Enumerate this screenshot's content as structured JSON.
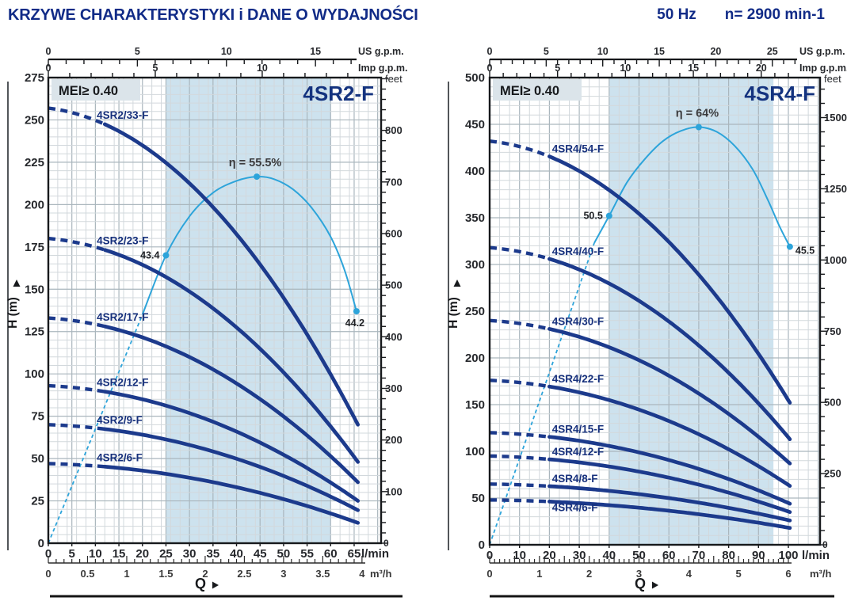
{
  "header": {
    "title": "KRZYWE CHARAKTERYSTYKI i DANE O WYDAJNOŚCI",
    "frequency": "50 Hz",
    "speed": "n= 2900 min-1"
  },
  "colors": {
    "header_blue": "#112b87",
    "curve_navy": "#1c3a8c",
    "efficiency_blue": "#2da4da",
    "duty_band_blue": "#cde2ee",
    "mei_box_gray": "#dbe4ea"
  },
  "chart_data": [
    {
      "type": "line",
      "model": "4SR2-F",
      "mei_label": "MEI≥ 0.40",
      "xlabel": "Q",
      "ylabel": "H (m)",
      "x_axis_units": {
        "primary": "l/min",
        "secondary": "m³/h",
        "top_outer": "US g.p.m.",
        "top_inner": "Imp g.p.m."
      },
      "y_axis_right_unit": "feet",
      "xlim_lmin": [
        0,
        70
      ],
      "ylim_m": [
        0,
        275
      ],
      "x_ticks_lmin": [
        0,
        5,
        10,
        15,
        20,
        25,
        30,
        35,
        40,
        45,
        50,
        55,
        60,
        65
      ],
      "x_ticks_m3h": [
        0,
        0.5,
        1,
        1.5,
        2,
        2.5,
        3,
        3.5,
        4
      ],
      "x_ticks_us_gpm": [
        0,
        5,
        10,
        15
      ],
      "x_ticks_imp_gpm": [
        0,
        5,
        10
      ],
      "y_ticks_m": [
        0,
        25,
        50,
        75,
        100,
        125,
        150,
        175,
        200,
        225,
        250,
        275
      ],
      "y_ticks_feet": [
        100,
        200,
        300,
        400,
        500,
        600,
        700,
        800
      ],
      "preferred_range_lmin": [
        25,
        60
      ],
      "curve_q_end_lmin": 65.8,
      "curve_dashed_until_lmin": 12,
      "curves": [
        {
          "label": "4SR2/33-F",
          "h0_m": 257,
          "h_end_m": 70
        },
        {
          "label": "4SR2/23-F",
          "h0_m": 180,
          "h_end_m": 48
        },
        {
          "label": "4SR2/17-F",
          "h0_m": 133,
          "h_end_m": 36
        },
        {
          "label": "4SR2/12-F",
          "h0_m": 93,
          "h_end_m": 25
        },
        {
          "label": "4SR2/9-F",
          "h0_m": 70,
          "h_end_m": 19.5
        },
        {
          "label": "4SR2/6-F",
          "h0_m": 47,
          "h_end_m": 12
        }
      ],
      "efficiency_curve": {
        "dashed_points_q_h": [
          [
            0,
            0
          ],
          [
            20,
            135
          ]
        ],
        "solid_points_q_h": [
          [
            20,
            135
          ],
          [
            25,
            170
          ],
          [
            30,
            193
          ],
          [
            35,
            207
          ],
          [
            40,
            214
          ],
          [
            44.3,
            216.5
          ],
          [
            48,
            215
          ],
          [
            52,
            209
          ],
          [
            56,
            198
          ],
          [
            60,
            181
          ],
          [
            63,
            161
          ],
          [
            65.5,
            137
          ]
        ],
        "markers": [
          {
            "q_lmin": 25,
            "h_m": 170,
            "label": "43.4",
            "pos": "left"
          },
          {
            "q_lmin": 44.3,
            "h_m": 216.5,
            "label": "η = 55.5%",
            "pos": "top"
          },
          {
            "q_lmin": 65.5,
            "h_m": 137,
            "label": "44.2",
            "pos": "bottom"
          }
        ]
      }
    },
    {
      "type": "line",
      "model": "4SR4-F",
      "mei_label": "MEI≥ 0.40",
      "xlabel": "Q",
      "ylabel": "H (m)",
      "x_axis_units": {
        "primary": "l/min",
        "secondary": "m³/h",
        "top_outer": "US g.p.m.",
        "top_inner": "Imp g.p.m."
      },
      "y_axis_right_unit": "feet",
      "xlim_lmin": [
        0,
        110
      ],
      "ylim_m": [
        0,
        500
      ],
      "x_ticks_lmin": [
        0,
        10,
        20,
        30,
        40,
        50,
        60,
        70,
        80,
        90,
        100
      ],
      "x_ticks_m3h": [
        0,
        1,
        2,
        3,
        4,
        5,
        6
      ],
      "x_ticks_us_gpm": [
        0,
        5,
        10,
        15,
        20,
        25
      ],
      "x_ticks_imp_gpm": [
        0,
        5,
        10,
        15,
        20
      ],
      "y_ticks_m": [
        0,
        50,
        100,
        150,
        200,
        250,
        300,
        350,
        400,
        450,
        500
      ],
      "y_ticks_feet": [
        250,
        500,
        750,
        1000,
        1250,
        1500
      ],
      "preferred_range_lmin": [
        40,
        95
      ],
      "curve_q_end_lmin": 100.5,
      "curve_dashed_until_lmin": 20,
      "curves": [
        {
          "label": "4SR4/54-F",
          "h0_m": 432,
          "h_end_m": 152
        },
        {
          "label": "4SR4/40-F",
          "h0_m": 318,
          "h_end_m": 113
        },
        {
          "label": "4SR4/30-F",
          "h0_m": 240,
          "h_end_m": 87
        },
        {
          "label": "4SR4/22-F",
          "h0_m": 176,
          "h_end_m": 63
        },
        {
          "label": "4SR4/15-F",
          "h0_m": 120,
          "h_end_m": 44
        },
        {
          "label": "4SR4/12-F",
          "h0_m": 95,
          "h_end_m": 35
        },
        {
          "label": "4SR4/8-F",
          "h0_m": 65,
          "h_end_m": 26
        },
        {
          "label": "4SR4/6-F",
          "h0_m": 48,
          "h_end_m": 18,
          "label_dy": 17
        }
      ],
      "efficiency_curve": {
        "dashed_points_q_h": [
          [
            0,
            0
          ],
          [
            35,
            323
          ]
        ],
        "solid_points_q_h": [
          [
            35,
            323
          ],
          [
            40,
            352
          ],
          [
            46,
            388
          ],
          [
            52,
            413
          ],
          [
            58,
            432
          ],
          [
            64,
            443
          ],
          [
            70,
            447
          ],
          [
            76,
            442
          ],
          [
            82,
            427
          ],
          [
            88,
            402
          ],
          [
            93,
            370
          ],
          [
            97,
            341
          ],
          [
            100.5,
            319
          ]
        ],
        "markers": [
          {
            "q_lmin": 40,
            "h_m": 352,
            "label": "50.5",
            "pos": "left"
          },
          {
            "q_lmin": 70,
            "h_m": 447,
            "label": "η = 64%",
            "pos": "top"
          },
          {
            "q_lmin": 100.5,
            "h_m": 319,
            "label": "45.5",
            "pos": "right"
          }
        ]
      }
    }
  ]
}
